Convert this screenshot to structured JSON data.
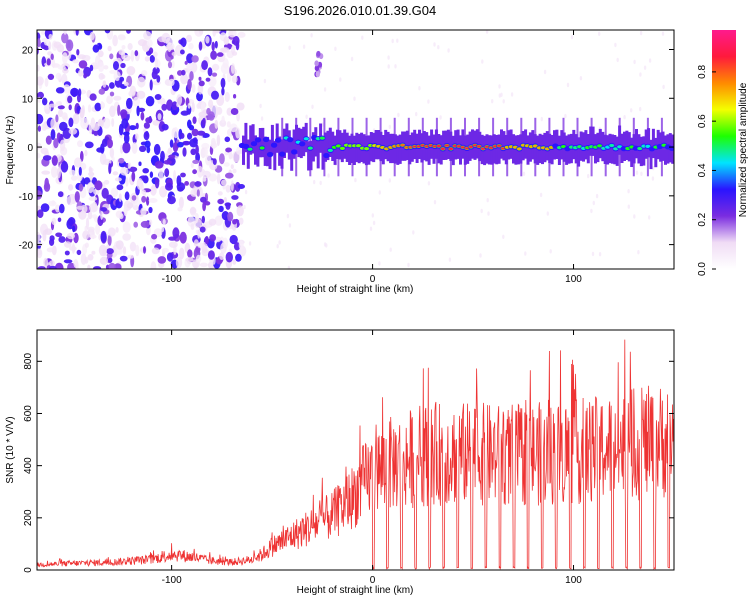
{
  "title": "S196.2026.010.01.39.G04",
  "chart_data": [
    {
      "type": "heatmap",
      "name": "spectrogram",
      "xlabel": "Height of straight line (km)",
      "ylabel": "Frequency (Hz)",
      "xlim": [
        -167,
        150
      ],
      "ylim": [
        -25,
        24
      ],
      "xticks": [
        "-100",
        "0",
        "100"
      ],
      "xtick_values": [
        -100,
        0,
        100
      ],
      "yticks": [
        "20",
        "10",
        "0",
        "-10",
        "-20"
      ],
      "ytick_values": [
        20,
        10,
        0,
        -10,
        -20
      ],
      "colorbar": {
        "label": "Normalized spectral amplitude",
        "range": [
          0,
          0.97
        ],
        "ticks": [
          "0.0",
          "0.2",
          "0.4",
          "0.6",
          "0.8"
        ],
        "tick_values": [
          0,
          0.2,
          0.4,
          0.6,
          0.8
        ],
        "stops": [
          "#ffffff",
          "#f0dcf5",
          "#7a2ce0",
          "#2a14ff",
          "#00e4ff",
          "#1eff00",
          "#f4ff00",
          "#ff8a00",
          "#ff1a3c",
          "#ff1a8c"
        ]
      },
      "features": {
        "noisy_region_x": [
          -167,
          -65
        ],
        "carrier_start_x": -65,
        "carrier_frequency_hz": 0,
        "peak_band_x": [
          20,
          65
        ],
        "burst_x": -27,
        "burst_freq_hz": 17
      }
    },
    {
      "type": "line",
      "name": "snr",
      "xlabel": "Height of straight line (km)",
      "ylabel": "SNR (10 * V/V)",
      "xlim": [
        -167,
        150
      ],
      "ylim": [
        0,
        920
      ],
      "xticks": [
        "-100",
        "0",
        "100"
      ],
      "xtick_values": [
        -100,
        0,
        100
      ],
      "yticks": [
        "0",
        "200",
        "400",
        "600",
        "800"
      ],
      "ytick_values": [
        0,
        200,
        400,
        600,
        800
      ],
      "color": "#ee3333",
      "series": [
        {
          "name": "SNR envelope",
          "x": [
            -167,
            -150,
            -130,
            -110,
            -100,
            -90,
            -80,
            -70,
            -60,
            -55,
            -50,
            -45,
            -40,
            -35,
            -30,
            -25,
            -20,
            -15,
            -10,
            -5,
            0,
            5,
            10,
            15,
            20,
            25,
            30,
            40,
            50,
            60,
            70,
            80,
            90,
            100,
            110,
            120,
            130,
            140,
            150
          ],
          "values": [
            20,
            25,
            30,
            40,
            60,
            50,
            35,
            30,
            40,
            60,
            90,
            110,
            130,
            150,
            170,
            190,
            210,
            240,
            280,
            330,
            370,
            390,
            410,
            420,
            430,
            440,
            445,
            445,
            445,
            440,
            440,
            445,
            445,
            450,
            460,
            470,
            480,
            490,
            500
          ]
        }
      ],
      "dropouts_start_x": 0,
      "dropout_spacing_km": 7
    }
  ]
}
